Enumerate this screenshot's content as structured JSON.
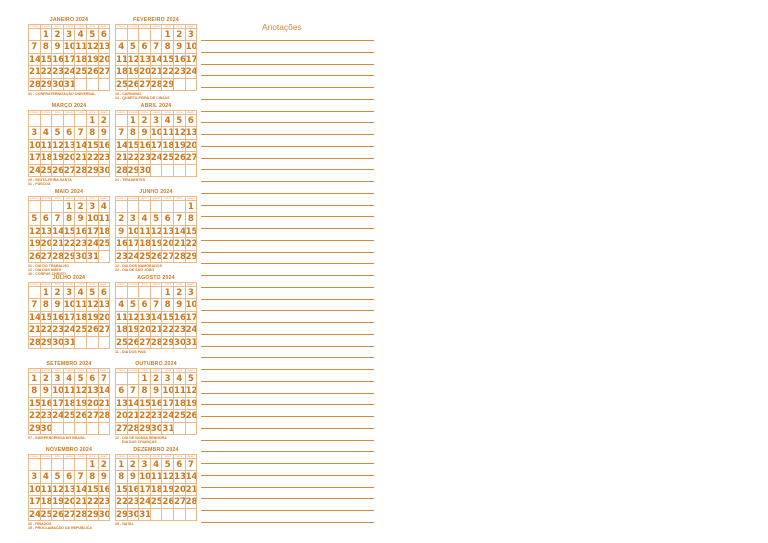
{
  "weekday_headers": [
    "DOMINGO",
    "SEGUNDA",
    "TERÇA",
    "QUARTA",
    "QUINTA",
    "SEXTA",
    "SÁBADO"
  ],
  "anotacoes_title": "Anotações",
  "months": [
    {
      "name": "JANEIRO 2024",
      "offset": 1,
      "days": 31,
      "notes": "01 - CONFRATERNIZAÇÃO UNIVERSAL"
    },
    {
      "name": "FEVEREIRO 2024",
      "offset": 4,
      "days": 29,
      "notes": "13 - CARNAVAL\n14 - QUARTA-FEIRA DE CINZAS"
    },
    {
      "name": "MARÇO 2024",
      "offset": 5,
      "days": 31,
      "notes": "29 - SEXTA-FEIRA SANTA\n31 - PÁSCOA"
    },
    {
      "name": "ABRIL 2024",
      "offset": 1,
      "days": 30,
      "notes": "21 - TIRADENTES"
    },
    {
      "name": "MAIO 2024",
      "offset": 3,
      "days": 31,
      "notes": "01 - DIA DO TRABALHO\n12 - DIA DAS MÃES\n30 - CORPUS CHRISTI"
    },
    {
      "name": "JUNHO 2024",
      "offset": 6,
      "days": 30,
      "notes": "12 - DIA DOS NAMORADOS\n24 - DIA DE SÃO JOÃO"
    },
    {
      "name": "JULHO 2024",
      "offset": 1,
      "days": 31,
      "notes": ""
    },
    {
      "name": "AGOSTO 2024",
      "offset": 4,
      "days": 31,
      "notes": "11 - DIA DOS PAIS"
    },
    {
      "name": "SETEMBRO 2024",
      "offset": 0,
      "days": 30,
      "notes": "07 - INDEPENDÊNCIA DO BRASIL"
    },
    {
      "name": "OUTUBRO 2024",
      "offset": 2,
      "days": 31,
      "notes": "12 - DIA DE NOSSA SENHORA\n       DIA DAS CRIANÇAS"
    },
    {
      "name": "NOVEMBRO 2024",
      "offset": 5,
      "days": 30,
      "notes": "02 - FINADOS\n15 - PROCLAMAÇÃO DA REPÚBLICA"
    },
    {
      "name": "DEZEMBRO 2024",
      "offset": 0,
      "days": 31,
      "notes": "25 - NATAL"
    }
  ]
}
